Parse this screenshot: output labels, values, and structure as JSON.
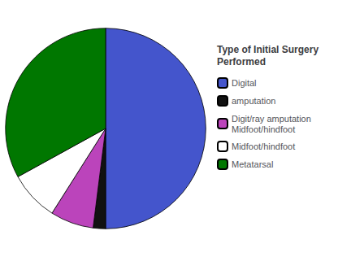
{
  "chart_data": {
    "type": "pie",
    "title": "Type of Initial Surgery\nPerformed",
    "categories": [
      "Digital",
      "amputation",
      "Digit/ray amputation\nMidfoot/hindfoot",
      "Midfoot/hindfoot",
      "Metatarsal"
    ],
    "values": [
      50.0,
      2.0,
      7.0,
      8.0,
      33.0
    ],
    "colors": [
      "#4455cc",
      "#111111",
      "#bb44bb",
      "#ffffff",
      "#007700"
    ],
    "legend": "right"
  }
}
